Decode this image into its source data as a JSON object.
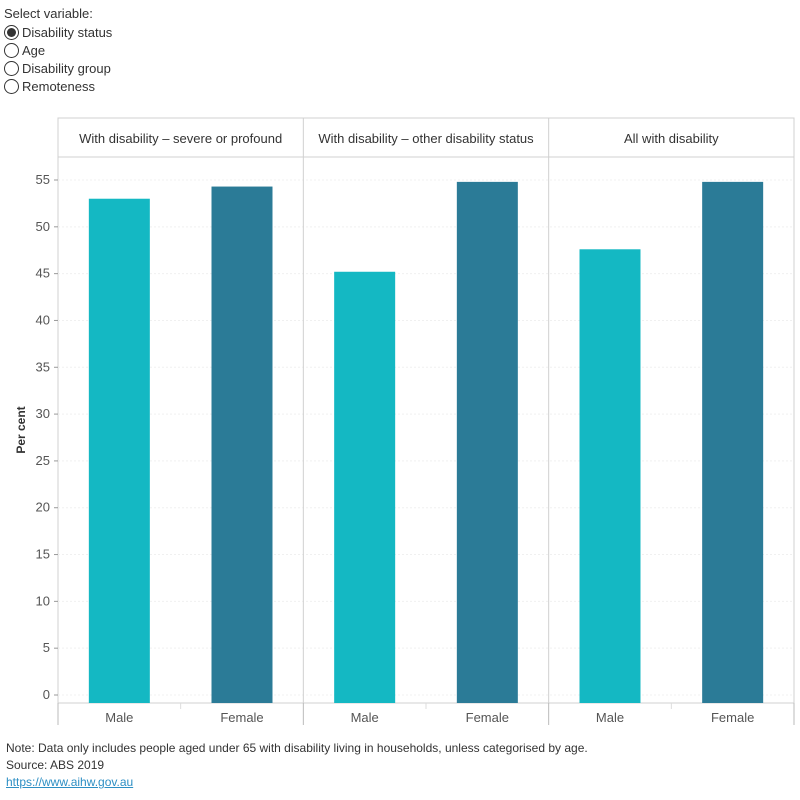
{
  "filter": {
    "title": "Select variable:",
    "options": [
      {
        "label": "Disability status",
        "selected": true
      },
      {
        "label": "Age",
        "selected": false
      },
      {
        "label": "Disability group",
        "selected": false
      },
      {
        "label": "Remoteness",
        "selected": false
      }
    ]
  },
  "chart_data": {
    "type": "bar",
    "ylabel": "Per cent",
    "xlabel": "",
    "ylim": [
      0,
      57
    ],
    "yticks": [
      "0",
      "5",
      "10",
      "15",
      "20",
      "25",
      "30",
      "35",
      "40",
      "45",
      "50",
      "55"
    ],
    "categories": [
      "Male",
      "Female"
    ],
    "panels": [
      {
        "title": "With disability – severe or profound",
        "values": [
          53.0,
          54.3
        ]
      },
      {
        "title": "With disability – other disability status",
        "values": [
          45.2,
          54.8
        ]
      },
      {
        "title": "All with disability",
        "values": [
          47.6,
          54.8
        ]
      }
    ],
    "colors": {
      "Male": "#14b8c3",
      "Female": "#2b7b97"
    },
    "grid": true
  },
  "footer": {
    "note": "Note: Data only includes people aged under 65 with disability living in households, unless categorised by age.",
    "source": "Source: ABS 2019",
    "link": "https://www.aihw.gov.au"
  }
}
